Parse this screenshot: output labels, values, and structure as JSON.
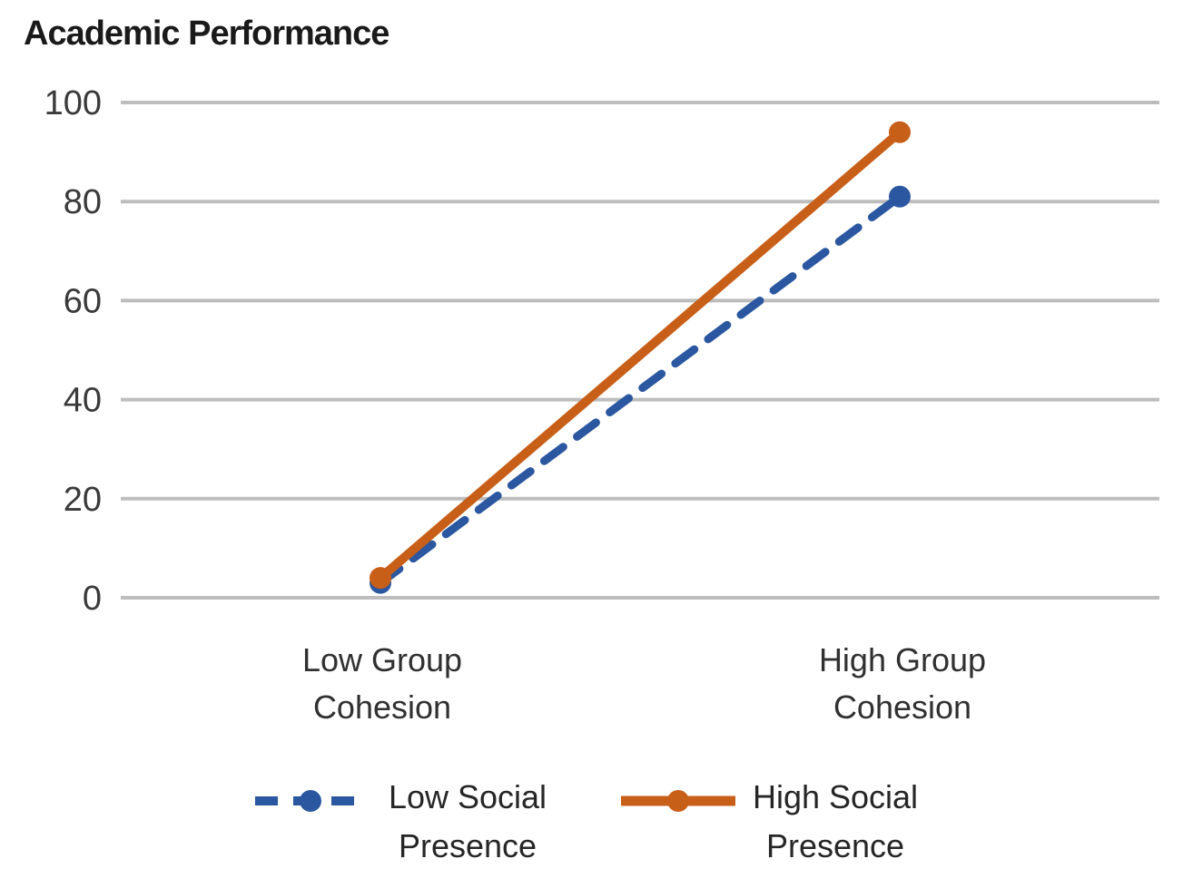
{
  "chart_data": {
    "type": "line",
    "title": "Academic Performance",
    "categories": [
      "Low Group Cohesion",
      "High Group Cohesion"
    ],
    "series": [
      {
        "name": "Low Social Presence",
        "values": [
          3,
          81
        ],
        "color": "#2B57A0",
        "style": "dashed"
      },
      {
        "name": "High Social Presence",
        "values": [
          4,
          94
        ],
        "color": "#C85F19",
        "style": "solid"
      }
    ],
    "xlabel": "",
    "ylabel": "",
    "ylim": [
      0,
      100
    ],
    "yticks": [
      0,
      20,
      40,
      60,
      80,
      100
    ],
    "grid": "horizontal",
    "gridline_color": "#BDBDBD",
    "tick_label_color": "#3a3a3a",
    "legend_position": "bottom"
  }
}
